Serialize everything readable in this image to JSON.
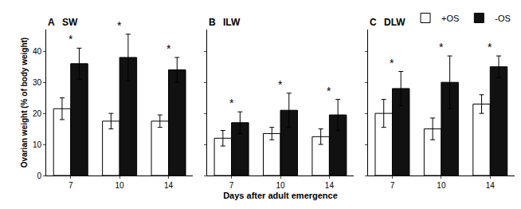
{
  "chart_data": [
    {
      "type": "bar",
      "title": "A",
      "subtitle": "SW",
      "categories": [
        "7",
        "10",
        "14"
      ],
      "series": [
        {
          "name": "+OS",
          "color": "white",
          "values": [
            21.5,
            17.5,
            17.5
          ],
          "errors": [
            3.5,
            2.5,
            2.0
          ]
        },
        {
          "name": "-OS",
          "color": "#111111",
          "values": [
            36.0,
            38.0,
            34.0
          ],
          "errors": [
            5.0,
            7.5,
            4.0
          ]
        }
      ],
      "annotations": [
        {
          "text": "*",
          "category": "7",
          "series": "-OS"
        },
        {
          "text": "*",
          "category": "10",
          "series": "-OS"
        },
        {
          "text": "*",
          "category": "14",
          "series": "-OS"
        }
      ],
      "ylabel": "Ovarian weight (% of body weight)",
      "ylim": [
        0,
        47
      ],
      "yticks": [
        0,
        10,
        20,
        30,
        40
      ],
      "grid": false
    },
    {
      "type": "bar",
      "title": "B",
      "subtitle": "ILW",
      "categories": [
        "7",
        "10",
        "14"
      ],
      "series": [
        {
          "name": "+OS",
          "color": "white",
          "values": [
            12.0,
            13.5,
            12.5
          ],
          "errors": [
            2.5,
            2.0,
            2.5
          ]
        },
        {
          "name": "-OS",
          "color": "#111111",
          "values": [
            17.0,
            21.0,
            19.5
          ],
          "errors": [
            3.5,
            5.5,
            5.0
          ]
        }
      ],
      "annotations": [
        {
          "text": "*",
          "category": "7",
          "series": "-OS"
        },
        {
          "text": "*",
          "category": "10",
          "series": "-OS"
        },
        {
          "text": "*",
          "category": "14",
          "series": "-OS"
        }
      ],
      "xlabel": "Days after adult emergence",
      "ylim": [
        0,
        47
      ],
      "yticks": [
        0,
        10,
        20,
        30,
        40
      ],
      "grid": false,
      "tick_labels": "x"
    },
    {
      "type": "bar",
      "title": "C",
      "subtitle": "DLW",
      "categories": [
        "7",
        "10",
        "14"
      ],
      "series": [
        {
          "name": "+OS",
          "color": "white",
          "values": [
            20.0,
            15.0,
            23.0
          ],
          "errors": [
            4.5,
            3.5,
            3.0
          ]
        },
        {
          "name": "-OS",
          "color": "#111111",
          "values": [
            28.0,
            30.0,
            35.0
          ],
          "errors": [
            5.5,
            8.5,
            3.5
          ]
        }
      ],
      "annotations": [
        {
          "text": "*",
          "category": "7",
          "series": "-OS"
        },
        {
          "text": "*",
          "category": "10",
          "series": "-OS"
        },
        {
          "text": "*",
          "category": "14",
          "series": "-OS"
        }
      ],
      "ylim": [
        0,
        47
      ],
      "yticks": [
        0,
        10,
        20,
        30,
        40
      ],
      "grid": false,
      "tick_labels": "x",
      "legend": "upper right"
    }
  ]
}
